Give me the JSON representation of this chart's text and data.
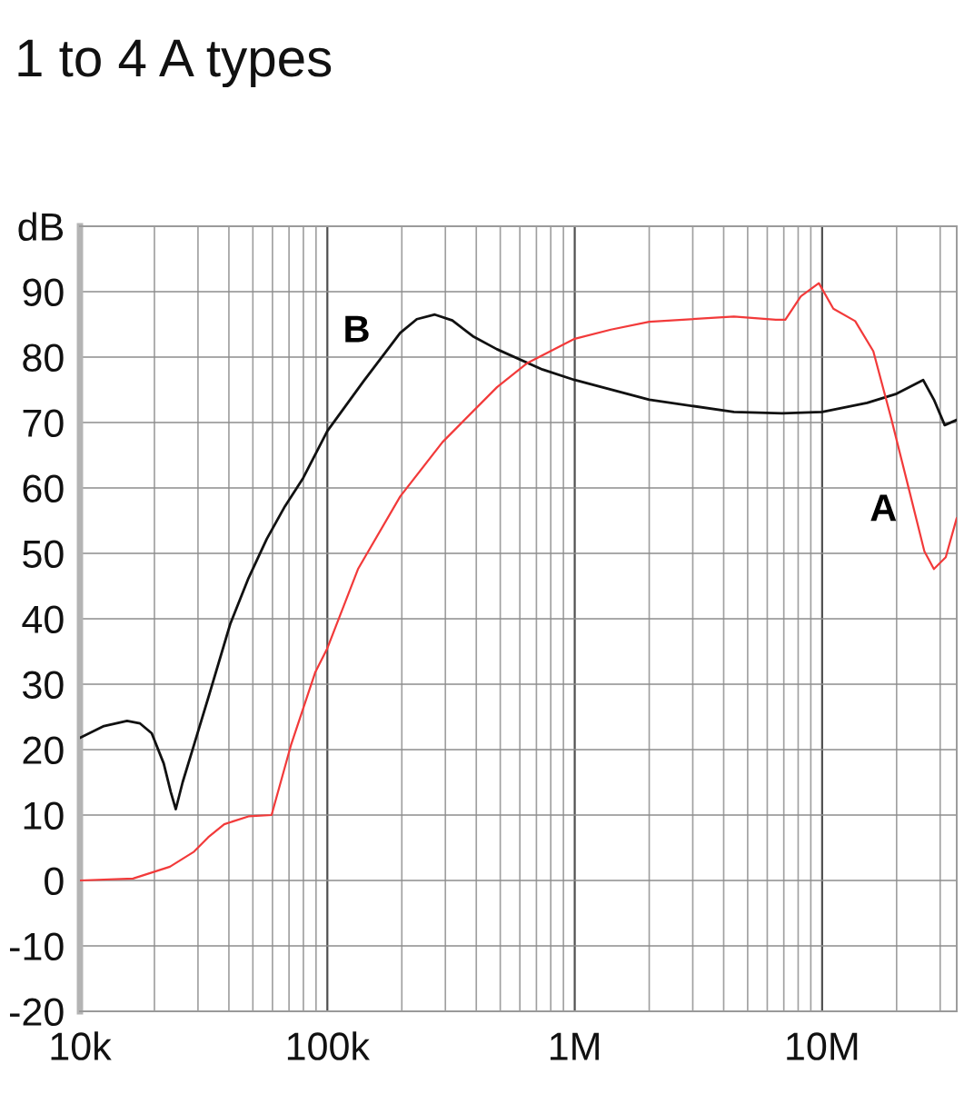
{
  "chart_data": {
    "type": "line",
    "title": "1 to 4 A types",
    "log": "x",
    "grid": true,
    "xlim": [
      10000,
      35000000
    ],
    "xticks": [
      {
        "value": 10000,
        "label": "10k"
      },
      {
        "value": 100000,
        "label": "100k"
      },
      {
        "value": 1000000,
        "label": "1M"
      },
      {
        "value": 10000000,
        "label": "10M"
      }
    ],
    "ylim": [
      -20,
      100
    ],
    "yticks": [
      -20,
      -10,
      0,
      10,
      20,
      30,
      40,
      50,
      60,
      70,
      80,
      90,
      {
        "value": 100,
        "label": "dB"
      }
    ],
    "series": [
      {
        "name": "B",
        "color": "#111111",
        "x": [
          10000,
          12500,
          15500,
          17500,
          19500,
          21800,
          23300,
          24400,
          26000,
          28900,
          33300,
          40500,
          48000,
          56900,
          67400,
          79800,
          100000,
          140000,
          197000,
          230000,
          272000,
          320000,
          387000,
          485000,
          741000,
          1000000,
          2000000,
          4400000,
          6900000,
          10000000,
          15200000,
          20000000,
          25600000,
          28300000,
          31300000,
          35000000
        ],
        "values": [
          21.8,
          23.6,
          24.4,
          24.0,
          22.5,
          17.9,
          13.5,
          10.9,
          15.0,
          20.7,
          28.4,
          39.2,
          46.2,
          52.2,
          57.2,
          61.5,
          68.7,
          76.3,
          83.7,
          85.8,
          86.5,
          85.6,
          83.2,
          81.2,
          78.1,
          76.5,
          73.5,
          71.6,
          71.4,
          71.6,
          73.0,
          74.4,
          76.5,
          73.5,
          69.6,
          70.4
        ]
      },
      {
        "name": "A",
        "color": "#f23a3a",
        "x": [
          10000,
          16400,
          23100,
          28900,
          33000,
          38300,
          48000,
          59500,
          71300,
          89300,
          100000,
          133000,
          197000,
          292000,
          485000,
          644000,
          1000000,
          1400000,
          2000000,
          4400000,
          6500000,
          7100000,
          8200000,
          9700000,
          11100000,
          13600000,
          16100000,
          19000000,
          22500000,
          25900000,
          28300000,
          31600000,
          35000000
        ],
        "values": [
          0.0,
          0.3,
          2.1,
          4.4,
          6.6,
          8.6,
          9.8,
          10.0,
          20.7,
          31.8,
          35.5,
          47.6,
          58.7,
          67.0,
          75.4,
          79.1,
          82.8,
          84.2,
          85.4,
          86.2,
          85.7,
          85.7,
          89.3,
          91.3,
          87.4,
          85.5,
          80.9,
          70.7,
          59.6,
          50.3,
          47.6,
          49.4,
          55.4
        ]
      }
    ]
  }
}
